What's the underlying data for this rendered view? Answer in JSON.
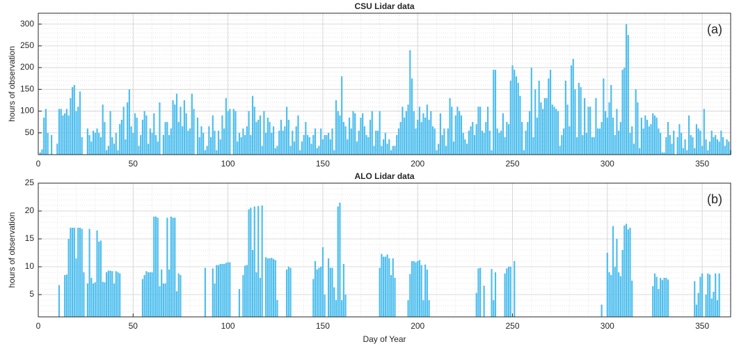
{
  "chart_data": [
    {
      "type": "bar",
      "title": "CSU Lidar data",
      "ylabel": "hours of observation",
      "annotation": "(a)",
      "color": "#4dbeee",
      "grid": true,
      "xlim": [
        0,
        365
      ],
      "xticks": [
        0,
        50,
        100,
        150,
        200,
        250,
        300,
        350
      ],
      "ylim": [
        0,
        325
      ],
      "yticks": [
        50,
        100,
        150,
        200,
        250,
        300
      ],
      "x": [
        1,
        2,
        3,
        4,
        5,
        6,
        7,
        8,
        9,
        10,
        11,
        12,
        13,
        14,
        15,
        16,
        17,
        18,
        19,
        20,
        21,
        22,
        23,
        24,
        25,
        26,
        27,
        28,
        29,
        30,
        31,
        32,
        33,
        34,
        35,
        36,
        37,
        38,
        39,
        40,
        41,
        42,
        43,
        44,
        45,
        46,
        47,
        48,
        49,
        50,
        51,
        52,
        53,
        54,
        55,
        56,
        57,
        58,
        59,
        60,
        61,
        62,
        63,
        64,
        65,
        66,
        67,
        68,
        69,
        70,
        71,
        72,
        73,
        74,
        75,
        76,
        77,
        78,
        79,
        80,
        81,
        82,
        83,
        84,
        85,
        86,
        87,
        88,
        89,
        90,
        91,
        92,
        93,
        94,
        95,
        96,
        97,
        98,
        99,
        100,
        101,
        102,
        103,
        104,
        105,
        106,
        107,
        108,
        109,
        110,
        111,
        112,
        113,
        114,
        115,
        116,
        117,
        118,
        119,
        120,
        121,
        122,
        123,
        124,
        125,
        126,
        127,
        128,
        129,
        130,
        131,
        132,
        133,
        134,
        135,
        136,
        137,
        138,
        139,
        140,
        141,
        142,
        143,
        144,
        145,
        146,
        147,
        148,
        149,
        150,
        151,
        152,
        153,
        154,
        155,
        156,
        157,
        158,
        159,
        160,
        161,
        162,
        163,
        164,
        165,
        166,
        167,
        168,
        169,
        170,
        171,
        172,
        173,
        174,
        175,
        176,
        177,
        178,
        179,
        180,
        181,
        182,
        183,
        184,
        185,
        186,
        187,
        188,
        189,
        190,
        191,
        192,
        193,
        194,
        195,
        196,
        197,
        198,
        199,
        200,
        201,
        202,
        203,
        204,
        205,
        206,
        207,
        208,
        209,
        210,
        211,
        212,
        213,
        214,
        215,
        216,
        217,
        218,
        219,
        220,
        221,
        222,
        223,
        224,
        225,
        226,
        227,
        228,
        229,
        230,
        231,
        232,
        233,
        234,
        235,
        236,
        237,
        238,
        239,
        240,
        241,
        242,
        243,
        244,
        245,
        246,
        247,
        248,
        249,
        250,
        251,
        252,
        253,
        254,
        255,
        256,
        257,
        258,
        259,
        260,
        261,
        262,
        263,
        264,
        265,
        266,
        267,
        268,
        269,
        270,
        271,
        272,
        273,
        274,
        275,
        276,
        277,
        278,
        279,
        280,
        281,
        282,
        283,
        284,
        285,
        286,
        287,
        288,
        289,
        290,
        291,
        292,
        293,
        294,
        295,
        296,
        297,
        298,
        299,
        300,
        301,
        302,
        303,
        304,
        305,
        306,
        307,
        308,
        309,
        310,
        311,
        312,
        313,
        314,
        315,
        316,
        317,
        318,
        319,
        320,
        321,
        322,
        323,
        324,
        325,
        326,
        327,
        328,
        329,
        330,
        331,
        332,
        333,
        334,
        335,
        336,
        337,
        338,
        339,
        340,
        341,
        342,
        343,
        344,
        345,
        346,
        347,
        348,
        349,
        350,
        351,
        352,
        353,
        354,
        355,
        356,
        357,
        358,
        359,
        360,
        361,
        362,
        363,
        364,
        365
      ],
      "values": [
        5,
        12,
        85,
        105,
        50,
        0,
        45,
        0,
        0,
        25,
        105,
        105,
        90,
        95,
        105,
        90,
        130,
        155,
        160,
        100,
        110,
        145,
        40,
        0,
        0,
        60,
        45,
        30,
        55,
        50,
        60,
        50,
        40,
        115,
        75,
        10,
        20,
        100,
        40,
        25,
        50,
        10,
        70,
        80,
        110,
        35,
        120,
        150,
        65,
        50,
        95,
        85,
        20,
        45,
        80,
        100,
        90,
        25,
        60,
        50,
        95,
        45,
        30,
        120,
        0,
        45,
        75,
        75,
        45,
        60,
        125,
        115,
        140,
        75,
        110,
        65,
        125,
        95,
        55,
        60,
        140,
        105,
        0,
        85,
        40,
        65,
        50,
        10,
        20,
        65,
        40,
        90,
        55,
        10,
        55,
        35,
        90,
        60,
        130,
        100,
        105,
        0,
        105,
        100,
        30,
        50,
        40,
        60,
        45,
        65,
        100,
        45,
        135,
        110,
        75,
        80,
        90,
        20,
        100,
        50,
        85,
        75,
        50,
        65,
        15,
        20,
        55,
        80,
        55,
        65,
        110,
        80,
        20,
        55,
        30,
        65,
        90,
        10,
        30,
        45,
        75,
        45,
        40,
        25,
        45,
        60,
        15,
        20,
        60,
        35,
        45,
        45,
        50,
        35,
        60,
        10,
        125,
        100,
        90,
        180,
        75,
        65,
        35,
        85,
        60,
        100,
        95,
        30,
        55,
        85,
        95,
        65,
        45,
        40,
        80,
        100,
        20,
        55,
        55,
        100,
        20,
        35,
        50,
        25,
        35,
        10,
        20,
        20,
        45,
        60,
        75,
        110,
        85,
        100,
        115,
        240,
        175,
        100,
        60,
        80,
        110,
        75,
        95,
        85,
        115,
        80,
        100,
        65,
        60,
        10,
        25,
        95,
        45,
        60,
        20,
        60,
        130,
        110,
        30,
        90,
        110,
        100,
        90,
        50,
        35,
        25,
        55,
        65,
        75,
        45,
        70,
        110,
        110,
        55,
        50,
        75,
        110,
        55,
        10,
        195,
        195,
        60,
        50,
        55,
        95,
        40,
        75,
        70,
        170,
        205,
        195,
        180,
        165,
        135,
        75,
        10,
        55,
        75,
        100,
        200,
        40,
        150,
        85,
        170,
        120,
        105,
        130,
        130,
        175,
        195,
        115,
        110,
        105,
        100,
        20,
        45,
        60,
        170,
        115,
        65,
        205,
        220,
        150,
        40,
        165,
        155,
        45,
        130,
        50,
        110,
        110,
        40,
        40,
        130,
        60,
        60,
        75,
        175,
        100,
        85,
        120,
        160,
        85,
        45,
        105,
        55,
        75,
        195,
        200,
        300,
        275,
        50,
        65,
        25,
        150,
        120,
        15,
        85,
        60,
        90,
        80,
        65,
        70,
        95,
        90,
        85,
        60,
        50,
        5,
        5,
        40,
        75,
        45,
        25,
        55,
        0,
        40,
        70,
        50,
        15,
        35,
        10,
        90,
        45,
        40,
        15,
        70,
        60,
        55,
        20,
        105,
        35,
        10,
        30,
        55,
        40,
        45,
        35,
        30,
        55,
        40,
        20,
        35,
        30,
        10
      ]
    },
    {
      "type": "bar",
      "title": "ALO Lidar data",
      "ylabel": "hours of observation",
      "xlabel": "Day of Year",
      "annotation": "(b)",
      "color": "#4dbeee",
      "grid": true,
      "xlim": [
        0,
        365
      ],
      "xticks": [
        0,
        50,
        100,
        150,
        200,
        250,
        300,
        350
      ],
      "ylim": [
        1,
        25
      ],
      "yticks": [
        5,
        10,
        15,
        20,
        25
      ],
      "x": [
        1,
        2,
        3,
        4,
        5,
        6,
        7,
        8,
        9,
        10,
        11,
        12,
        13,
        14,
        15,
        16,
        17,
        18,
        19,
        20,
        21,
        22,
        23,
        24,
        25,
        26,
        27,
        28,
        29,
        30,
        31,
        32,
        33,
        34,
        35,
        36,
        37,
        38,
        39,
        40,
        41,
        42,
        43,
        44,
        45,
        46,
        47,
        48,
        49,
        50,
        51,
        52,
        53,
        54,
        55,
        56,
        57,
        58,
        59,
        60,
        61,
        62,
        63,
        64,
        65,
        66,
        67,
        68,
        69,
        70,
        71,
        72,
        73,
        74,
        75,
        76,
        77,
        78,
        79,
        80,
        81,
        82,
        83,
        84,
        85,
        86,
        87,
        88,
        89,
        90,
        91,
        92,
        93,
        94,
        95,
        96,
        97,
        98,
        99,
        100,
        101,
        102,
        103,
        104,
        105,
        106,
        107,
        108,
        109,
        110,
        111,
        112,
        113,
        114,
        115,
        116,
        117,
        118,
        119,
        120,
        121,
        122,
        123,
        124,
        125,
        126,
        127,
        128,
        129,
        130,
        131,
        132,
        133,
        134,
        135,
        136,
        137,
        138,
        139,
        140,
        141,
        142,
        143,
        144,
        145,
        146,
        147,
        148,
        149,
        150,
        151,
        152,
        153,
        154,
        155,
        156,
        157,
        158,
        159,
        160,
        161,
        162,
        163,
        164,
        165,
        166,
        167,
        168,
        169,
        170,
        171,
        172,
        173,
        174,
        175,
        176,
        177,
        178,
        179,
        180,
        181,
        182,
        183,
        184,
        185,
        186,
        187,
        188,
        189,
        190,
        191,
        192,
        193,
        194,
        195,
        196,
        197,
        198,
        199,
        200,
        201,
        202,
        203,
        204,
        205,
        206,
        207,
        208,
        209,
        210,
        211,
        212,
        213,
        214,
        215,
        216,
        217,
        218,
        219,
        220,
        221,
        222,
        223,
        224,
        225,
        226,
        227,
        228,
        229,
        230,
        231,
        232,
        233,
        234,
        235,
        236,
        237,
        238,
        239,
        240,
        241,
        242,
        243,
        244,
        245,
        246,
        247,
        248,
        249,
        250,
        251,
        252,
        253,
        254,
        255,
        256,
        257,
        258,
        259,
        260,
        261,
        262,
        263,
        264,
        265,
        266,
        267,
        268,
        269,
        270,
        271,
        272,
        273,
        274,
        275,
        276,
        277,
        278,
        279,
        280,
        281,
        282,
        283,
        284,
        285,
        286,
        287,
        288,
        289,
        290,
        291,
        292,
        293,
        294,
        295,
        296,
        297,
        298,
        299,
        300,
        301,
        302,
        303,
        304,
        305,
        306,
        307,
        308,
        309,
        310,
        311,
        312,
        313,
        314,
        315,
        316,
        317,
        318,
        319,
        320,
        321,
        322,
        323,
        324,
        325,
        326,
        327,
        328,
        329,
        330,
        331,
        332,
        333,
        334,
        335,
        336,
        337,
        338,
        339,
        340,
        341,
        342,
        343,
        344,
        345,
        346,
        347,
        348,
        349,
        350,
        351,
        352,
        353,
        354,
        355,
        356,
        357,
        358,
        359,
        360,
        361,
        362,
        363,
        364,
        365
      ],
      "values": [
        0,
        0,
        0,
        0,
        0,
        0,
        0,
        0,
        0,
        0,
        6.7,
        0,
        0,
        8.5,
        8.6,
        15,
        17,
        17,
        17,
        11.5,
        17,
        17,
        16.8,
        9,
        0,
        7,
        16.8,
        8,
        7,
        7.2,
        16.5,
        14.5,
        14.7,
        7.3,
        7.2,
        9,
        9.3,
        9.3,
        9.2,
        7,
        9.2,
        9,
        8.8,
        0,
        0,
        0,
        0,
        0,
        0,
        0,
        0,
        0,
        0,
        0,
        7.8,
        8.5,
        9.2,
        9,
        9,
        9,
        19,
        19,
        18.8,
        6.5,
        9.5,
        7,
        7,
        18.8,
        9.5,
        19,
        18.8,
        18.8,
        5.6,
        8.8,
        8.5,
        0,
        0,
        0,
        0,
        0,
        0,
        0,
        0,
        0,
        0,
        0,
        0,
        9.8,
        0,
        0,
        0,
        9.7,
        7,
        10.3,
        10.3,
        10.5,
        10.5,
        10.5,
        10.7,
        10.8,
        10.8,
        0,
        0,
        0,
        0,
        6,
        0,
        8.5,
        10.2,
        10.3,
        20.3,
        20.6,
        13,
        20.8,
        9,
        20.9,
        8,
        21,
        0,
        11.7,
        11.5,
        11.5,
        11.6,
        11.4,
        11.2,
        4,
        0,
        0,
        0,
        0,
        9.5,
        10,
        9.8,
        0,
        0,
        0,
        0,
        0,
        0,
        0,
        0,
        0,
        0,
        0,
        7.8,
        11,
        9.5,
        9.8,
        10,
        13.5,
        5,
        0,
        11.5,
        9.8,
        9.8,
        6.3,
        4,
        20.8,
        21.5,
        4,
        10.5,
        5,
        0,
        0,
        0,
        0,
        0,
        0,
        0,
        0,
        0,
        0,
        0,
        0,
        0,
        0,
        0,
        0,
        0,
        9.8,
        12.3,
        11.8,
        11.8,
        12.2,
        11.5,
        8.5,
        11.5,
        8,
        0,
        0,
        0,
        0,
        0,
        0,
        4,
        8.7,
        11,
        11,
        10.8,
        11,
        11.2,
        10.3,
        4,
        10.4,
        9.5,
        4,
        0,
        0,
        0,
        0,
        0,
        0,
        0,
        0,
        0,
        0,
        0,
        0,
        0,
        0,
        0,
        0,
        0,
        0,
        0,
        0,
        0,
        0,
        0,
        0,
        5.3,
        9.7,
        9.8,
        0,
        6.6,
        0,
        0,
        0,
        9.6,
        4,
        9,
        0,
        0,
        0,
        0,
        8.8,
        9.7,
        10,
        10,
        0,
        11,
        0,
        0,
        0,
        0,
        0,
        0,
        0,
        0,
        0,
        0,
        0,
        0,
        0,
        0,
        0,
        0,
        0,
        0,
        0,
        0,
        0,
        0,
        0,
        0,
        0,
        0,
        0,
        0,
        0,
        0,
        0,
        0,
        0,
        0,
        0,
        0,
        0,
        0,
        0,
        0,
        0,
        0,
        0,
        0,
        0,
        3.2,
        0,
        0,
        12.5,
        9,
        8.5,
        17.3,
        10,
        15,
        9,
        8.3,
        13,
        17.4,
        17.7,
        16.7,
        17,
        7.5,
        0,
        0,
        0,
        0,
        0,
        0,
        0,
        0,
        0,
        0,
        6.5,
        8.8,
        8.2,
        6,
        8,
        7.6,
        8,
        8,
        7.7,
        0,
        0,
        0,
        0,
        0,
        0,
        0,
        0,
        0,
        0,
        0,
        0,
        0,
        7.4,
        3.2,
        5.3,
        8.2,
        8.8,
        0,
        5,
        8.8,
        8.6,
        4.3,
        5.5,
        8.8,
        4,
        8.8,
        0,
        0,
        0,
        0,
        0,
        0
      ]
    }
  ]
}
